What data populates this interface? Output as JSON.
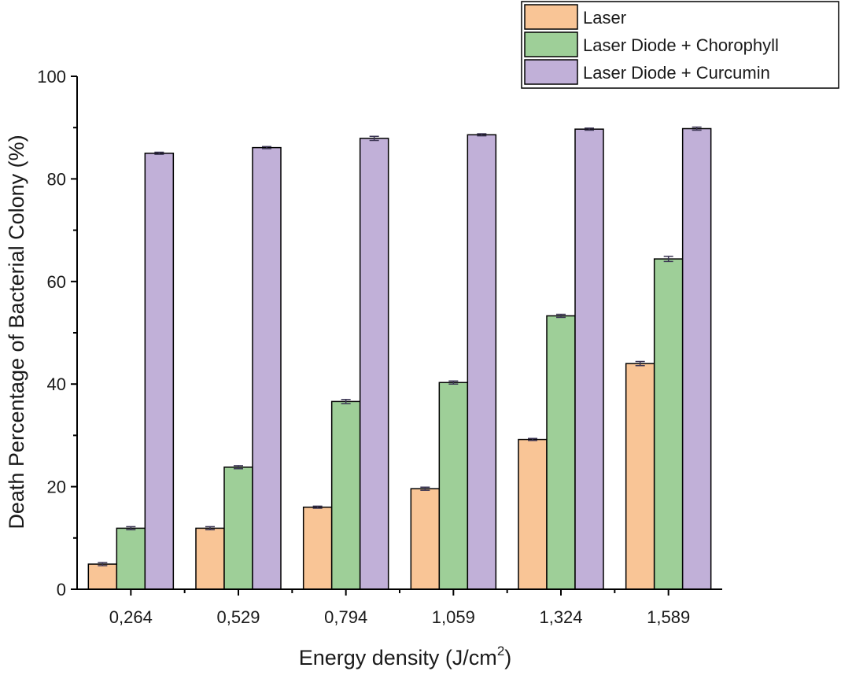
{
  "chart_data": {
    "type": "bar",
    "categories": [
      "0,264",
      "0,529",
      "0,794",
      "1,059",
      "1,324",
      "1,589"
    ],
    "xlabel": "Energy density (J/cm",
    "xlabel_sup": "2",
    "xlabel_suffix": ")",
    "ylabel": "Death Percentage of Bacterial Colony (%)",
    "ylim": [
      0,
      100
    ],
    "yticks": [
      0,
      20,
      40,
      60,
      80,
      100
    ],
    "ytick_labels": [
      "0",
      "20",
      "40",
      "60",
      "80",
      "100"
    ],
    "grid": false,
    "legend_position": "top-right",
    "series": [
      {
        "name": "Laser",
        "color": "#f9c596",
        "values": [
          4.9,
          11.9,
          16.0,
          19.6,
          29.2,
          44.0
        ],
        "errors": [
          0.3,
          0.3,
          0.2,
          0.3,
          0.2,
          0.4
        ]
      },
      {
        "name": "Laser Diode + Chorophyll",
        "color": "#9ecf98",
        "values": [
          11.9,
          23.8,
          36.6,
          40.3,
          53.3,
          64.4
        ],
        "errors": [
          0.3,
          0.3,
          0.4,
          0.3,
          0.3,
          0.5
        ]
      },
      {
        "name": "Laser Diode + Curcumin",
        "color": "#c1b0d8",
        "values": [
          85.0,
          86.1,
          87.9,
          88.6,
          89.7,
          89.8
        ],
        "errors": [
          0.2,
          0.2,
          0.4,
          0.2,
          0.2,
          0.3
        ]
      }
    ]
  }
}
